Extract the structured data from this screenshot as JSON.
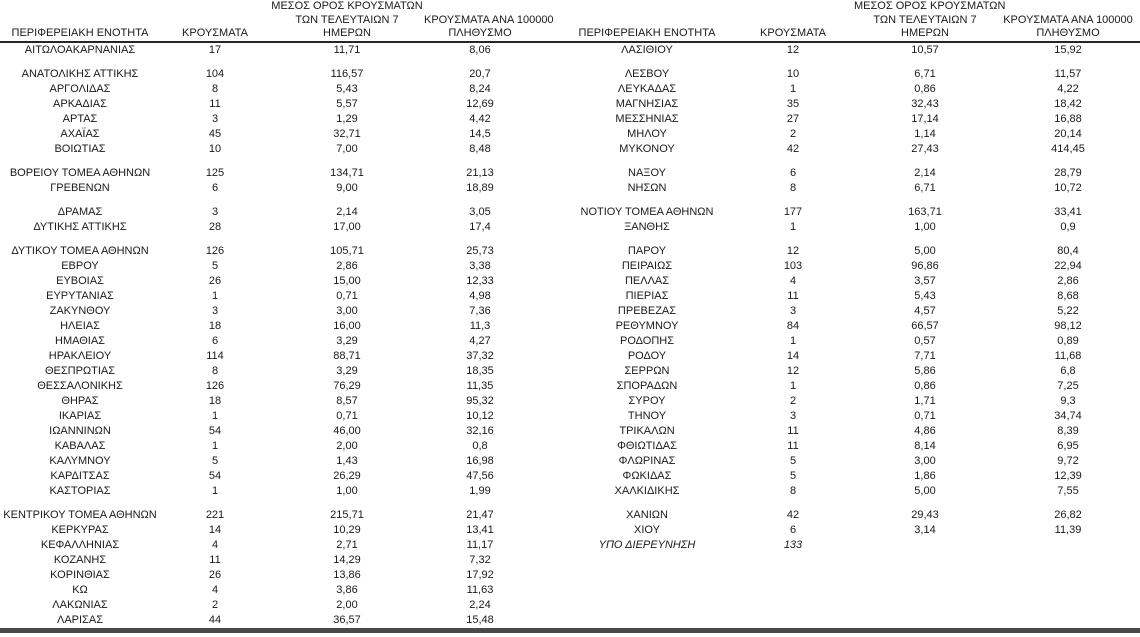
{
  "colors": {
    "text": "#1a1a1a",
    "header_rule": "#262626",
    "bottom_rule": "#4a4a4a"
  },
  "headers": {
    "region": "ΠΕΡΙΦΕΡΕΙΑΚΗ ΕΝΟΤΗΤΑ",
    "cases": "ΚΡΟΥΣΜΑΤΑ",
    "avg7_line1": "ΜΕΣΟΣ ΟΡΟΣ ΚΡΟΥΣΜΑΤΩΝ",
    "avg7_line2": "ΤΩΝ ΤΕΛΕΥΤΑΙΩΝ 7",
    "avg7_line3": "ΗΜΕΡΩΝ",
    "per100k_line1": "ΚΡΟΥΣΜΑΤΑ ΑΝΑ 100000",
    "per100k_line2": "ΠΛΗΘΥΣΜΟ"
  },
  "rows": [
    {
      "left": [
        "ΑΙΤΩΛΟΑΚΑΡΝΑΝΙΑΣ",
        "17",
        "11,71",
        "8,06"
      ],
      "right": [
        "ΛΑΣΙΘΙΟΥ",
        "12",
        "10,57",
        "15,92"
      ]
    },
    {
      "gap": true
    },
    {
      "left": [
        "ΑΝΑΤΟΛΙΚΗΣ ΑΤΤΙΚΗΣ",
        "104",
        "116,57",
        "20,7"
      ],
      "right": [
        "ΛΕΣΒΟΥ",
        "10",
        "6,71",
        "11,57"
      ]
    },
    {
      "left": [
        "ΑΡΓΟΛΙΔΑΣ",
        "8",
        "5,43",
        "8,24"
      ],
      "right": [
        "ΛΕΥΚΑΔΑΣ",
        "1",
        "0,86",
        "4,22"
      ]
    },
    {
      "left": [
        "ΑΡΚΑΔΙΑΣ",
        "11",
        "5,57",
        "12,69"
      ],
      "right": [
        "ΜΑΓΝΗΣΙΑΣ",
        "35",
        "32,43",
        "18,42"
      ]
    },
    {
      "left": [
        "ΑΡΤΑΣ",
        "3",
        "1,29",
        "4,42"
      ],
      "right": [
        "ΜΕΣΣΗΝΙΑΣ",
        "27",
        "17,14",
        "16,88"
      ]
    },
    {
      "left": [
        "ΑΧΑΪΑΣ",
        "45",
        "32,71",
        "14,5"
      ],
      "right": [
        "ΜΗΛΟΥ",
        "2",
        "1,14",
        "20,14"
      ]
    },
    {
      "left": [
        "ΒΟΙΩΤΙΑΣ",
        "10",
        "7,00",
        "8,48"
      ],
      "right": [
        "ΜΥΚΟΝΟΥ",
        "42",
        "27,43",
        "414,45"
      ]
    },
    {
      "gap": true
    },
    {
      "left": [
        "ΒΟΡΕΙΟΥ ΤΟΜΕΑ ΑΘΗΝΩΝ",
        "125",
        "134,71",
        "21,13"
      ],
      "right": [
        "ΝΑΞΟΥ",
        "6",
        "2,14",
        "28,79"
      ]
    },
    {
      "left": [
        "ΓΡΕΒΕΝΩΝ",
        "6",
        "9,00",
        "18,89"
      ],
      "right": [
        "ΝΗΣΩΝ",
        "8",
        "6,71",
        "10,72"
      ]
    },
    {
      "gap": true
    },
    {
      "left": [
        "ΔΡΑΜΑΣ",
        "3",
        "2,14",
        "3,05"
      ],
      "right": [
        "ΝΟΤΙΟΥ ΤΟΜΕΑ ΑΘΗΝΩΝ",
        "177",
        "163,71",
        "33,41"
      ]
    },
    {
      "left": [
        "ΔΥΤΙΚΗΣ ΑΤΤΙΚΗΣ",
        "28",
        "17,00",
        "17,4"
      ],
      "right": [
        "ΞΑΝΘΗΣ",
        "1",
        "1,00",
        "0,9"
      ]
    },
    {
      "gap": true
    },
    {
      "left": [
        "ΔΥΤΙΚΟΥ ΤΟΜΕΑ ΑΘΗΝΩΝ",
        "126",
        "105,71",
        "25,73"
      ],
      "right": [
        "ΠΑΡΟΥ",
        "12",
        "5,00",
        "80,4"
      ]
    },
    {
      "left": [
        "ΕΒΡΟΥ",
        "5",
        "2,86",
        "3,38"
      ],
      "right": [
        "ΠΕΙΡΑΙΩΣ",
        "103",
        "96,86",
        "22,94"
      ]
    },
    {
      "left": [
        "ΕΥΒΟΙΑΣ",
        "26",
        "15,00",
        "12,33"
      ],
      "right": [
        "ΠΕΛΛΑΣ",
        "4",
        "3,57",
        "2,86"
      ]
    },
    {
      "left": [
        "ΕΥΡΥΤΑΝΙΑΣ",
        "1",
        "0,71",
        "4,98"
      ],
      "right": [
        "ΠΙΕΡΙΑΣ",
        "11",
        "5,43",
        "8,68"
      ]
    },
    {
      "left": [
        "ΖΑΚΥΝΘΟΥ",
        "3",
        "3,00",
        "7,36"
      ],
      "right": [
        "ΠΡΕΒΕΖΑΣ",
        "3",
        "4,57",
        "5,22"
      ]
    },
    {
      "left": [
        "ΗΛΕΙΑΣ",
        "18",
        "16,00",
        "11,3"
      ],
      "right": [
        "ΡΕΘΥΜΝΟΥ",
        "84",
        "66,57",
        "98,12"
      ]
    },
    {
      "left": [
        "ΗΜΑΘΙΑΣ",
        "6",
        "3,29",
        "4,27"
      ],
      "right": [
        "ΡΟΔΟΠΗΣ",
        "1",
        "0,57",
        "0,89"
      ]
    },
    {
      "left": [
        "ΗΡΑΚΛΕΙΟΥ",
        "114",
        "88,71",
        "37,32"
      ],
      "right": [
        "ΡΟΔΟΥ",
        "14",
        "7,71",
        "11,68"
      ]
    },
    {
      "left": [
        "ΘΕΣΠΡΩΤΙΑΣ",
        "8",
        "3,29",
        "18,35"
      ],
      "right": [
        "ΣΕΡΡΩΝ",
        "12",
        "5,86",
        "6,8"
      ]
    },
    {
      "left": [
        "ΘΕΣΣΑΛΟΝΙΚΗΣ",
        "126",
        "76,29",
        "11,35"
      ],
      "right": [
        "ΣΠΟΡΑΔΩΝ",
        "1",
        "0,86",
        "7,25"
      ]
    },
    {
      "left": [
        "ΘΗΡΑΣ",
        "18",
        "8,57",
        "95,32"
      ],
      "right": [
        "ΣΥΡΟΥ",
        "2",
        "1,71",
        "9,3"
      ]
    },
    {
      "left": [
        "ΙΚΑΡΙΑΣ",
        "1",
        "0,71",
        "10,12"
      ],
      "right": [
        "ΤΗΝΟΥ",
        "3",
        "0,71",
        "34,74"
      ]
    },
    {
      "left": [
        "ΙΩΑΝΝΙΝΩΝ",
        "54",
        "46,00",
        "32,16"
      ],
      "right": [
        "ΤΡΙΚΑΛΩΝ",
        "11",
        "4,86",
        "8,39"
      ]
    },
    {
      "left": [
        "ΚΑΒΑΛΑΣ",
        "1",
        "2,00",
        "0,8"
      ],
      "right": [
        "ΦΘΙΩΤΙΔΑΣ",
        "11",
        "8,14",
        "6,95"
      ]
    },
    {
      "left": [
        "ΚΑΛΥΜΝΟΥ",
        "5",
        "1,43",
        "16,98"
      ],
      "right": [
        "ΦΛΩΡΙΝΑΣ",
        "5",
        "3,00",
        "9,72"
      ]
    },
    {
      "left": [
        "ΚΑΡΔΙΤΣΑΣ",
        "54",
        "26,29",
        "47,56"
      ],
      "right": [
        "ΦΩΚΙΔΑΣ",
        "5",
        "1,86",
        "12,39"
      ]
    },
    {
      "left": [
        "ΚΑΣΤΟΡΙΑΣ",
        "1",
        "1,00",
        "1,99"
      ],
      "right": [
        "ΧΑΛΚΙΔΙΚΗΣ",
        "8",
        "5,00",
        "7,55"
      ]
    },
    {
      "gap": true
    },
    {
      "left": [
        "ΚΕΝΤΡΙΚΟΥ ΤΟΜΕΑ ΑΘΗΝΩΝ",
        "221",
        "215,71",
        "21,47"
      ],
      "right": [
        "ΧΑΝΙΩΝ",
        "42",
        "29,43",
        "26,82"
      ]
    },
    {
      "left": [
        "ΚΕΡΚΥΡΑΣ",
        "14",
        "10,29",
        "13,41"
      ],
      "right": [
        "ΧΙΟΥ",
        "6",
        "3,14",
        "11,39"
      ]
    },
    {
      "left": [
        "ΚΕΦΑΛΛΗΝΙΑΣ",
        "4",
        "2,71",
        "11,17"
      ],
      "right": [
        "ΥΠΟ ΔΙΕΡΕΥΝΗΣΗ",
        "133",
        "",
        ""
      ],
      "right_italic": true
    },
    {
      "left": [
        "ΚΟΖΑΝΗΣ",
        "11",
        "14,29",
        "7,32"
      ],
      "right": null
    },
    {
      "left": [
        "ΚΟΡΙΝΘΙΑΣ",
        "26",
        "13,86",
        "17,92"
      ],
      "right": null
    },
    {
      "left": [
        "ΚΩ",
        "4",
        "3,86",
        "11,63"
      ],
      "right": null
    },
    {
      "left": [
        "ΛΑΚΩΝΙΑΣ",
        "2",
        "2,00",
        "2,24"
      ],
      "right": null
    },
    {
      "left": [
        "ΛΑΡΙΣΑΣ",
        "44",
        "36,57",
        "15,48"
      ],
      "right": null
    }
  ]
}
